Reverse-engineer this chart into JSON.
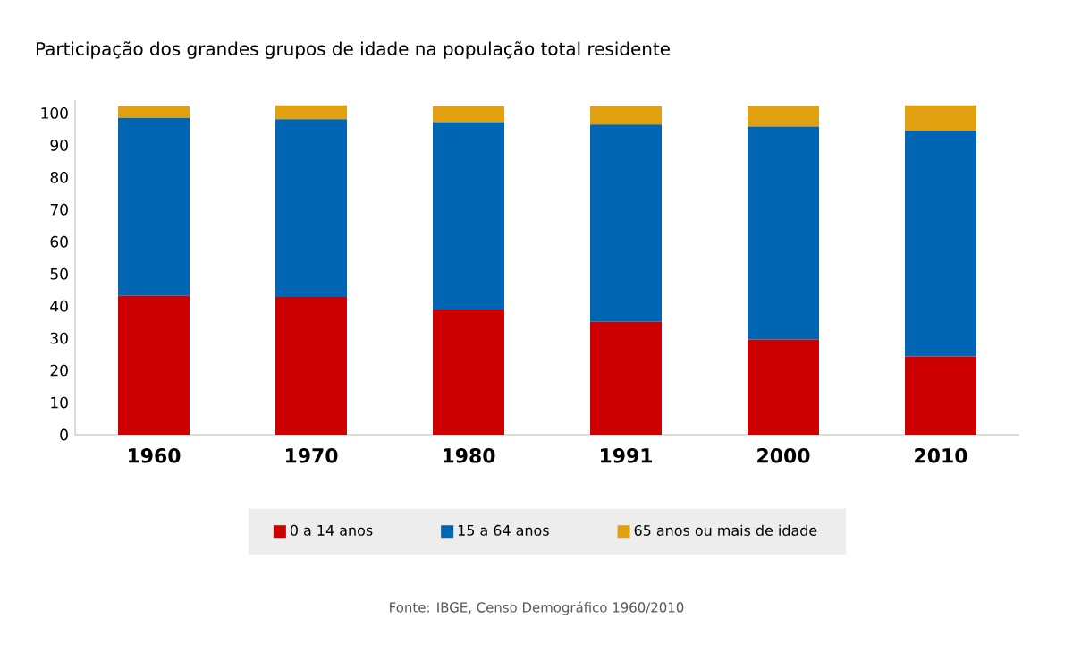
{
  "chart_data": {
    "type": "bar",
    "stacked": true,
    "title": "Participação dos grandes grupos de idade na população total residente",
    "categories": [
      "1960",
      "1970",
      "1980",
      "1991",
      "2000",
      "2010"
    ],
    "series": [
      {
        "name": "0 a 14 anos",
        "color": "#cc0000",
        "values": [
          43.2,
          42.8,
          38.9,
          35.1,
          29.6,
          24.3
        ]
      },
      {
        "name": "15 a 64 anos",
        "color": "#0066b3",
        "values": [
          55.3,
          55.3,
          58.3,
          61.3,
          66.2,
          70.2
        ]
      },
      {
        "name": "65 anos ou mais de idade",
        "color": "#e0a010",
        "values": [
          3.6,
          4.3,
          4.9,
          5.7,
          6.4,
          7.9
        ]
      }
    ],
    "ylim": [
      0,
      104
    ],
    "yticks": [
      0,
      10,
      20,
      30,
      40,
      50,
      60,
      70,
      80,
      90,
      100
    ],
    "grid": false,
    "legend": "bottom",
    "annotations": [
      "Fonte: IBGE, Censo Demográfico 1960/2010"
    ]
  }
}
